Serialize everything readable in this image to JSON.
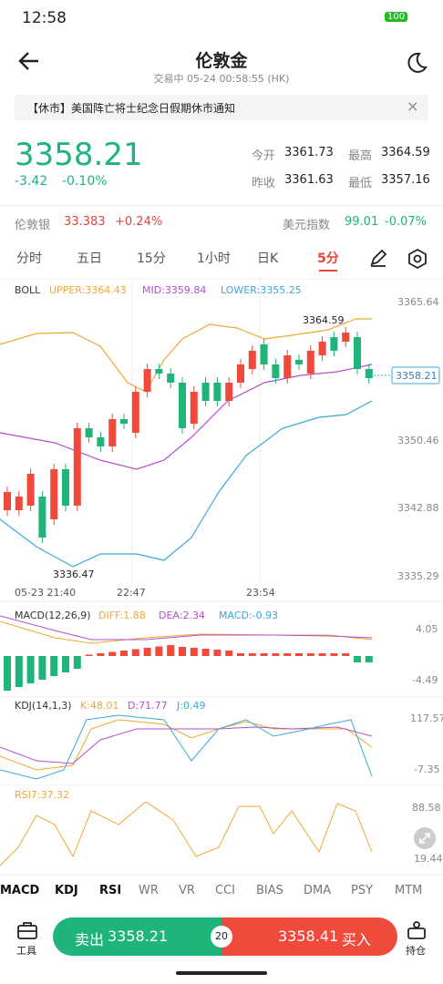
{
  "status": {
    "time": "12:58",
    "battery": "100"
  },
  "header": {
    "title": "伦敦金",
    "subtitle": "交易中 05-24 00:58:55 (HK)"
  },
  "notice": "【休市】美国阵亡将士纪念日假期休市通知",
  "quote": {
    "price": "3358.21",
    "change": "-3.42",
    "pct": "-0.10%",
    "stats": [
      {
        "label": "今开",
        "value": "3361.73"
      },
      {
        "label": "最高",
        "value": "3364.59"
      },
      {
        "label": "昨收",
        "value": "3361.63"
      },
      {
        "label": "最低",
        "value": "3357.16"
      }
    ]
  },
  "related": [
    {
      "name": "伦敦银",
      "value": "33.383",
      "change": "+0.24%"
    },
    {
      "name": "美元指数",
      "value": "99.01",
      "change": "-0.07%"
    }
  ],
  "tabs": [
    "分时",
    "五日",
    "15分",
    "1小时",
    "日K",
    "5分"
  ],
  "main": {
    "name": "BOLL",
    "upper": "UPPER:3364.43",
    "mid": "MID:3359.84",
    "lower": "LOWER:3355.25",
    "axis": [
      "3365.64",
      "3350.46",
      "3342.88",
      "3335.29"
    ],
    "current": "3358.21",
    "high": "3364.59",
    "low": "3336.47",
    "times": [
      "05-23 21:40",
      "22:47",
      "23:54"
    ]
  },
  "macd": {
    "name": "MACD(12,26,9)",
    "diff": "DIFF:1.88",
    "dea": "DEA:2.34",
    "macd": "MACD:-0.93",
    "axis": [
      "4.05",
      "-4.49"
    ]
  },
  "kdj": {
    "name": "KDJ(14,1,3)",
    "k": "K:48.01",
    "d": "D:71.77",
    "j": "J:0.49",
    "axis": [
      "117.57",
      "-7.35"
    ]
  },
  "rsi": {
    "name": "RSI7:37.32",
    "axis": [
      "88.58",
      "19.44"
    ]
  },
  "indicators": [
    "MACD",
    "KDJ",
    "RSI",
    "WR",
    "VR",
    "CCI",
    "BIAS",
    "DMA",
    "PSY",
    "MTM"
  ],
  "bottom": {
    "tool": "工具",
    "sell": "卖出",
    "sell_price": "3358.21",
    "spread": "20",
    "buy_price": "3358.41",
    "buy": "买入",
    "hold": "持仓"
  }
}
